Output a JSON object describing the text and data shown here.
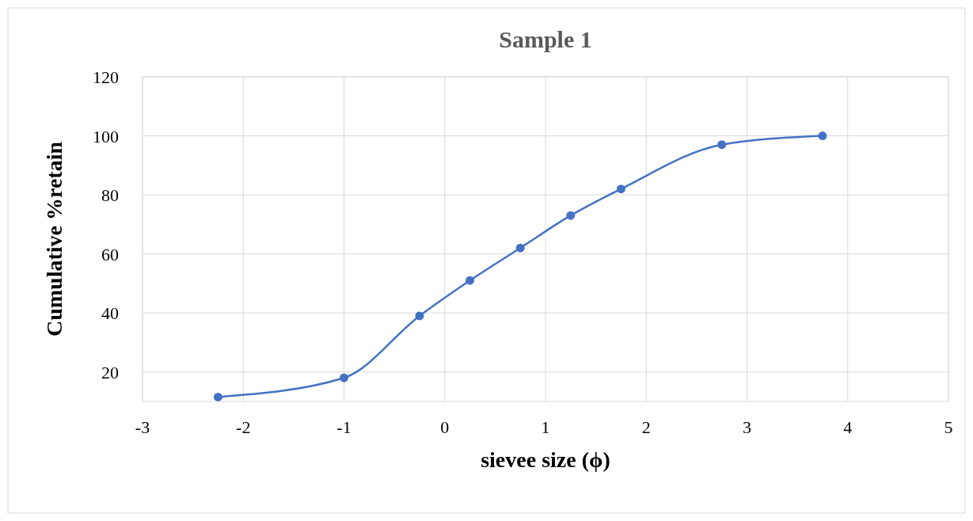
{
  "chart_data": {
    "type": "line",
    "title": "Sample 1",
    "xlabel": "sievee size (ϕ)",
    "ylabel": "Cumulative %retain",
    "x": [
      -2.25,
      -1,
      -0.25,
      0.25,
      0.75,
      1.25,
      1.75,
      2.75,
      3.75
    ],
    "series": [
      {
        "color": "#4472c4",
        "values": [
          11.5,
          18,
          39,
          51,
          62,
          73,
          82,
          97,
          100
        ]
      }
    ],
    "xlim": [
      -3,
      5
    ],
    "xticks": [
      -3,
      -2,
      -1,
      0,
      1,
      2,
      3,
      4,
      5
    ],
    "ylim": [
      10,
      120
    ],
    "yticks": [
      20,
      40,
      60,
      80,
      100,
      120
    ],
    "grid": true,
    "marker": "circle",
    "line_style": "solid"
  }
}
